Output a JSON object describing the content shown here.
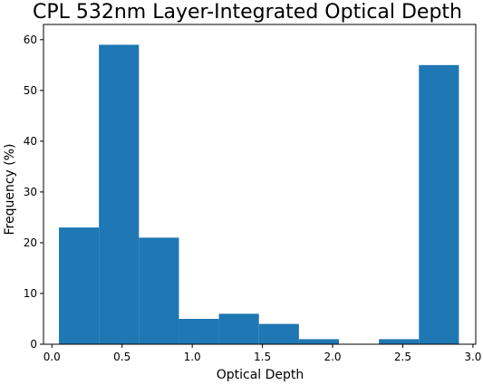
{
  "chart_data": {
    "type": "bar",
    "title": "CPL 532nm Layer-Integrated Optical Depth",
    "xlabel": "Optical Depth",
    "ylabel": "Frequency (%)",
    "xlim": [
      -0.06,
      3.02
    ],
    "ylim": [
      0,
      63
    ],
    "x_ticks": [
      "0.0",
      "0.5",
      "1.0",
      "1.5",
      "2.0",
      "2.5",
      "3.0"
    ],
    "y_ticks": [
      "0",
      "10",
      "20",
      "30",
      "40",
      "50",
      "60"
    ],
    "bins": [
      {
        "start": 0.05,
        "end": 0.335,
        "value": 23
      },
      {
        "start": 0.335,
        "end": 0.62,
        "value": 59
      },
      {
        "start": 0.62,
        "end": 0.905,
        "value": 21
      },
      {
        "start": 0.905,
        "end": 1.19,
        "value": 5
      },
      {
        "start": 1.19,
        "end": 1.475,
        "value": 6
      },
      {
        "start": 1.475,
        "end": 1.76,
        "value": 4
      },
      {
        "start": 1.76,
        "end": 2.045,
        "value": 1
      },
      {
        "start": 2.045,
        "end": 2.33,
        "value": 0
      },
      {
        "start": 2.33,
        "end": 2.615,
        "value": 1
      },
      {
        "start": 2.615,
        "end": 2.9,
        "value": 55
      }
    ],
    "bar_color": "#1f77b4",
    "grid": false,
    "legend": "none"
  }
}
